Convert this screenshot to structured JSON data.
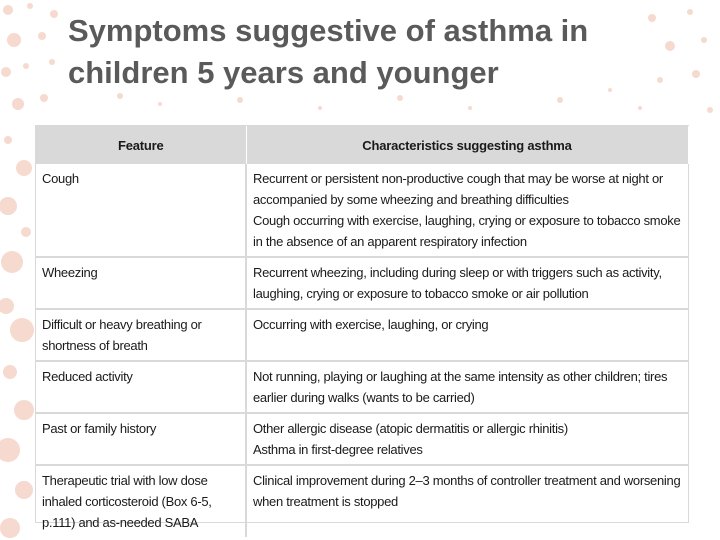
{
  "title": {
    "line1": "Symptoms suggestive of asthma in",
    "line2": "children 5 years and younger"
  },
  "table": {
    "headers": [
      "Feature",
      "Characteristics suggesting asthma"
    ],
    "rows": [
      {
        "feature": [
          "Cough"
        ],
        "characteristics": [
          "Recurrent or persistent non-productive cough that may be worse at night or",
          "accompanied by some wheezing and breathing difficulties",
          "Cough occurring with exercise, laughing, crying or exposure to tobacco smoke",
          "in the absence of an apparent respiratory infection"
        ]
      },
      {
        "feature": [
          "Wheezing"
        ],
        "characteristics": [
          "Recurrent wheezing, including during sleep or with triggers such as activity,",
          "laughing, crying or exposure to tobacco smoke or air pollution"
        ]
      },
      {
        "feature": [
          "Difficult or heavy breathing or",
          "shortness of breath"
        ],
        "characteristics": [
          "Occurring with exercise, laughing, or crying"
        ]
      },
      {
        "feature": [
          "Reduced activity"
        ],
        "characteristics": [
          "Not running, playing or laughing at the same intensity as other children; tires",
          "earlier during walks (wants to be carried)"
        ]
      },
      {
        "feature": [
          "Past or family history"
        ],
        "characteristics": [
          "Other allergic disease (atopic dermatitis or allergic rhinitis)",
          "Asthma in first-degree relatives"
        ]
      },
      {
        "feature": [
          "Therapeutic trial with low dose",
          "inhaled corticosteroid (Box 6-5,",
          "p.111) and as-needed SABA"
        ],
        "characteristics": [
          "Clinical improvement during 2–3 months of controller treatment and worsening",
          "when treatment is stopped"
        ]
      }
    ]
  },
  "colors": {
    "title": "#5a5a5a",
    "header_bg": "#d9d9d9",
    "dot_accent": "#f6d9cf"
  }
}
